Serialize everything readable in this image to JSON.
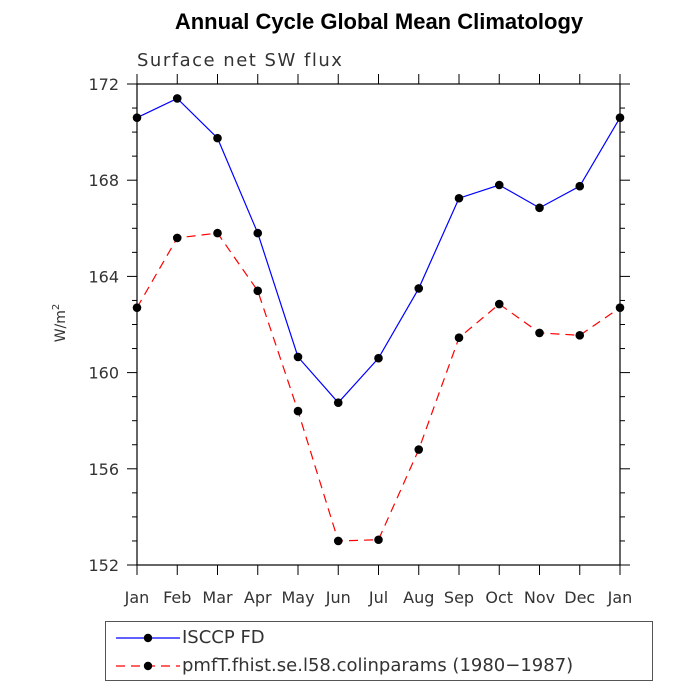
{
  "chart_data": {
    "type": "line",
    "title": "Annual Cycle Global Mean Climatology",
    "subtitle": "Surface net SW flux",
    "ylabel_base": "W/m",
    "ylabel_exp": "2",
    "xlabel": "",
    "categories": [
      "Jan",
      "Feb",
      "Mar",
      "Apr",
      "May",
      "Jun",
      "Jul",
      "Aug",
      "Sep",
      "Oct",
      "Nov",
      "Dec",
      "Jan"
    ],
    "ylim": [
      152,
      172
    ],
    "yticks": [
      152,
      156,
      160,
      164,
      168,
      172
    ],
    "yminor_step": 1,
    "grid": false,
    "legend_position": "bottom",
    "series": [
      {
        "name": "ISCCP FD",
        "color": "#0000ff",
        "dash": "solid",
        "marker": "filled-circle",
        "values": [
          170.6,
          171.4,
          169.75,
          165.8,
          160.65,
          158.75,
          160.6,
          163.5,
          167.25,
          167.8,
          166.85,
          167.75,
          170.6
        ]
      },
      {
        "name": "pmfT.fhist.se.l58.colinparams (1980−1987)",
        "color": "#ff0000",
        "dash": "dashed",
        "marker": "filled-circle",
        "values": [
          162.7,
          165.6,
          165.8,
          163.4,
          158.4,
          153.0,
          153.05,
          156.8,
          161.45,
          162.85,
          161.65,
          161.55,
          162.7
        ]
      }
    ]
  }
}
